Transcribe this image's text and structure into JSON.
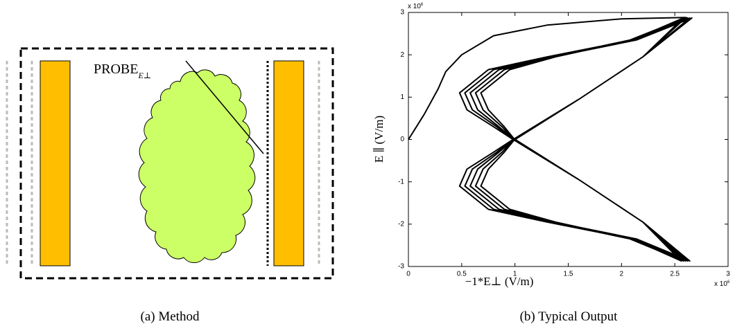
{
  "diagram": {
    "probe_label": "PROBE",
    "probe_subscript": "E⊥",
    "caption": "(a) Method"
  },
  "chart_data": {
    "type": "line",
    "x_label": "−1*E⊥ (V/m)",
    "y_label": "E ∥ (V/m)",
    "x_multiplier": {
      "base": "x 10",
      "power": "6"
    },
    "y_multiplier": {
      "base": "x 10",
      "power": "6"
    },
    "caption": "(b) Typical Output",
    "color": "#000000",
    "xlim": [
      0,
      3
    ],
    "ylim": [
      -3,
      3
    ],
    "xticks": [
      0,
      0.5,
      1,
      1.5,
      2,
      2.5,
      3
    ],
    "yticks": [
      -3,
      -2,
      -1,
      0,
      1,
      2,
      3
    ],
    "x": [
      0,
      0.05,
      0.15,
      0.28,
      0.35,
      0.5,
      0.8,
      1.3,
      2.0,
      2.6,
      2.62,
      2.1,
      1.3,
      0.75,
      0.48,
      0.55,
      0.8,
      0.97,
      1.6,
      2.2,
      2.6,
      2.1,
      1.3,
      0.75,
      0.48,
      0.55,
      0.8,
      0.97,
      1.6,
      2.2,
      2.64,
      2.12,
      1.32,
      0.8,
      0.53,
      0.6,
      0.83,
      0.97,
      1.6,
      2.2,
      2.62,
      2.12,
      1.32,
      0.8,
      0.53,
      0.6,
      0.83,
      0.97,
      1.6,
      2.2,
      2.6,
      2.08,
      1.34,
      0.85,
      0.58,
      0.65,
      0.85,
      0.98,
      1.6,
      2.2,
      2.58,
      2.08,
      1.34,
      0.85,
      0.58,
      0.65,
      0.85,
      0.98,
      1.6,
      2.2,
      2.66,
      2.14,
      1.36,
      0.9,
      0.63,
      0.7,
      0.88,
      0.98,
      1.6,
      2.2,
      2.64,
      2.14,
      1.36,
      0.9,
      0.63,
      0.7,
      0.88,
      0.98,
      1.6,
      2.2,
      2.58,
      2.1,
      1.38,
      0.95,
      0.68,
      0.75,
      0.9,
      0.99,
      1.6,
      2.2,
      2.56,
      2.1,
      1.38,
      0.95,
      0.68,
      0.75,
      0.9,
      0.99,
      1.6,
      2.2,
      2.6
    ],
    "values": [
      0,
      0.2,
      0.6,
      1.2,
      1.6,
      2.0,
      2.45,
      2.7,
      2.85,
      2.88,
      2.87,
      2.35,
      1.95,
      1.65,
      1.1,
      0.7,
      0.3,
      0.02,
      -0.95,
      -1.95,
      -2.87,
      -2.35,
      -1.95,
      -1.65,
      -1.1,
      -0.7,
      -0.3,
      -0.02,
      0.95,
      1.95,
      2.87,
      2.35,
      1.95,
      1.65,
      1.1,
      0.7,
      0.3,
      0.02,
      -0.95,
      -1.95,
      -2.87,
      -2.35,
      -1.95,
      -1.65,
      -1.1,
      -0.7,
      -0.3,
      -0.02,
      0.95,
      1.95,
      2.87,
      2.35,
      1.95,
      1.65,
      1.1,
      0.7,
      0.3,
      0.02,
      -0.95,
      -1.95,
      -2.87,
      -2.35,
      -1.95,
      -1.65,
      -1.1,
      -0.7,
      -0.3,
      -0.02,
      0.95,
      1.95,
      2.87,
      2.35,
      1.95,
      1.65,
      1.1,
      0.7,
      0.3,
      0.02,
      -0.95,
      -1.95,
      -2.87,
      -2.35,
      -1.95,
      -1.65,
      -1.1,
      -0.7,
      -0.3,
      -0.02,
      0.95,
      1.95,
      2.87,
      2.35,
      1.95,
      1.65,
      1.1,
      0.7,
      0.3,
      0.02,
      -0.95,
      -1.95,
      -2.87,
      -2.35,
      -1.95,
      -1.65,
      -1.1,
      -0.7,
      -0.3,
      -0.02,
      0.95,
      1.95,
      2.87
    ]
  }
}
